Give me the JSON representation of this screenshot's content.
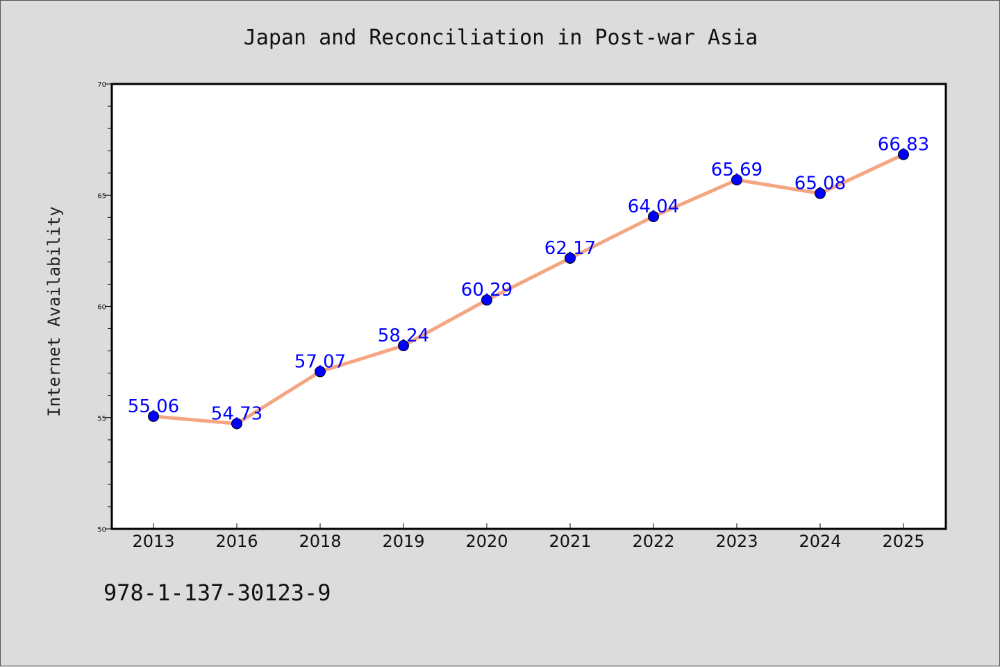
{
  "chart_data": {
    "type": "line",
    "title": "Japan and Reconciliation in Post-war Asia",
    "xlabel": "",
    "ylabel": "Internet Availability",
    "categories": [
      "2013",
      "2016",
      "2018",
      "2019",
      "2020",
      "2021",
      "2022",
      "2023",
      "2024",
      "2025"
    ],
    "series": [
      {
        "values": [
          55.06,
          54.73,
          57.07,
          58.24,
          60.29,
          62.17,
          64.04,
          65.69,
          65.08,
          66.83
        ],
        "data_labels": [
          "55.06",
          "54.73",
          "57.07",
          "58.24",
          "60.29",
          "62.17",
          "64.04",
          "65.69",
          "65.08",
          "66.83"
        ]
      }
    ],
    "ylim": [
      50,
      70
    ],
    "yticks": [
      50,
      55,
      60,
      65,
      70
    ],
    "ytick_labels": [
      "50",
      "55",
      "60",
      "65",
      "70"
    ],
    "grid": false,
    "colors": {
      "line": "#f4a582",
      "marker": "#0000ff",
      "data_label": "#0000ff",
      "plot_background": "#ffffff",
      "figure_background": "#dcdcdc"
    }
  },
  "footnote": "978-1-137-30123-9"
}
